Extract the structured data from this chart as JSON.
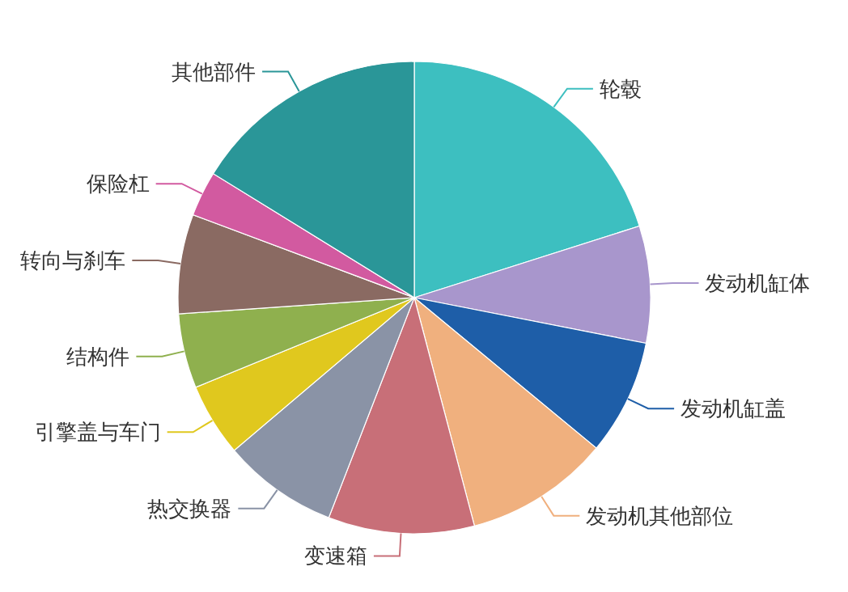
{
  "chart_data": {
    "type": "pie",
    "categories": [
      "轮毂",
      "发动机缸体",
      "发动机缸盖",
      "发动机其他部位",
      "变速箱",
      "热交换器",
      "引擎盖与车门",
      "结构件",
      "转向与刹车",
      "保险杠",
      "其他部件"
    ],
    "values": [
      20.1,
      8.0,
      7.9,
      9.9,
      10.0,
      7.9,
      5.0,
      5.1,
      6.8,
      3.1,
      16.2
    ],
    "colors": [
      "#3dbfc0",
      "#a896cc",
      "#1e5ea8",
      "#f0b07e",
      "#c86f78",
      "#8a93a6",
      "#e0c81e",
      "#8fb04e",
      "#8a6a62",
      "#d25aa0",
      "#2a9698"
    ]
  }
}
